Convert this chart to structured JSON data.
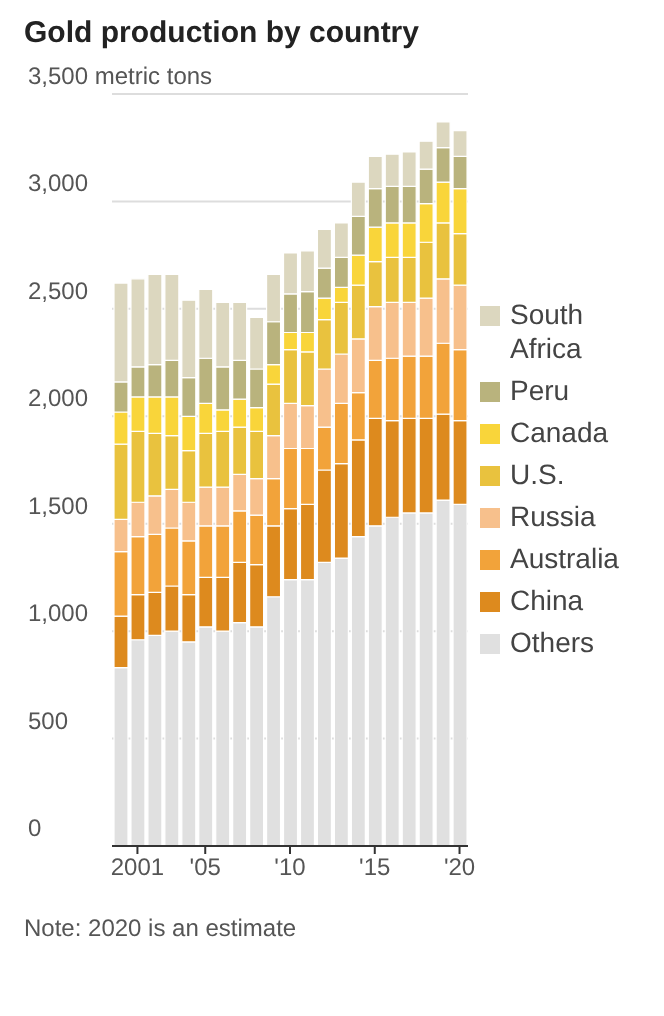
{
  "chart_data": {
    "type": "bar",
    "title": "Gold production by country",
    "stacked": true,
    "x": [
      2000,
      2001,
      2002,
      2003,
      2004,
      2005,
      2006,
      2007,
      2008,
      2009,
      2010,
      2011,
      2012,
      2013,
      2014,
      2015,
      2016,
      2017,
      2018,
      2019,
      2020
    ],
    "series": [
      {
        "name": "Others",
        "color": "#e0e0e0",
        "values": [
          830,
          960,
          980,
          1000,
          950,
          1020,
          1000,
          1040,
          1020,
          1160,
          1240,
          1240,
          1320,
          1340,
          1440,
          1490,
          1530,
          1550,
          1550,
          1610,
          1590
        ]
      },
      {
        "name": "China",
        "color": "#dd8a1e",
        "values": [
          240,
          210,
          200,
          210,
          220,
          230,
          250,
          280,
          290,
          330,
          330,
          350,
          430,
          440,
          450,
          500,
          450,
          440,
          440,
          400,
          390
        ]
      },
      {
        "name": "Australia",
        "color": "#f2a33a",
        "values": [
          300,
          270,
          270,
          270,
          250,
          240,
          240,
          240,
          230,
          220,
          280,
          260,
          200,
          280,
          220,
          270,
          290,
          290,
          290,
          330,
          330
        ]
      },
      {
        "name": "Russia",
        "color": "#f7c08c",
        "values": [
          150,
          160,
          180,
          180,
          180,
          180,
          180,
          170,
          170,
          200,
          210,
          200,
          270,
          230,
          250,
          250,
          260,
          250,
          270,
          300,
          300
        ]
      },
      {
        "name": "U.S.",
        "color": "#e9c23e",
        "values": [
          350,
          330,
          290,
          250,
          240,
          250,
          260,
          220,
          220,
          240,
          250,
          250,
          230,
          240,
          250,
          210,
          210,
          210,
          260,
          260,
          240
        ]
      },
      {
        "name": "Canada",
        "color": "#f9d53a",
        "values": [
          150,
          160,
          170,
          180,
          160,
          140,
          100,
          130,
          110,
          90,
          80,
          90,
          100,
          70,
          140,
          160,
          160,
          160,
          180,
          190,
          210
        ]
      },
      {
        "name": "Peru",
        "color": "#b9b37d",
        "values": [
          140,
          140,
          150,
          170,
          180,
          210,
          200,
          180,
          180,
          200,
          180,
          190,
          140,
          140,
          180,
          180,
          170,
          170,
          160,
          160,
          150
        ]
      },
      {
        "name": "South Africa",
        "color": "#dcd7bf",
        "values": [
          460,
          410,
          420,
          400,
          360,
          320,
          300,
          270,
          240,
          220,
          190,
          190,
          180,
          160,
          160,
          150,
          150,
          160,
          130,
          120,
          120
        ]
      }
    ],
    "xlim": [
      1999.5,
      2020.5
    ],
    "xticks": [
      {
        "value": 2001,
        "label": "2001"
      },
      {
        "value": 2005,
        "label": "'05"
      },
      {
        "value": 2010,
        "label": "'10"
      },
      {
        "value": 2015,
        "label": "'15"
      },
      {
        "value": 2020,
        "label": "'20"
      }
    ],
    "ylim": [
      0,
      3500
    ],
    "yticks": [
      0,
      500,
      {
        "value": 1000,
        "label": "1,000"
      },
      {
        "value": 1500,
        "label": "1,500"
      },
      {
        "value": 2000,
        "label": "2,000"
      },
      {
        "value": 2500,
        "label": "2,500"
      },
      {
        "value": 3000,
        "label": "3,000"
      },
      {
        "value": 3500,
        "label": "3,500 metric tons"
      }
    ],
    "grid": "y",
    "legend": "right",
    "annotations": [
      "Note: 2020 is an estimate"
    ]
  }
}
